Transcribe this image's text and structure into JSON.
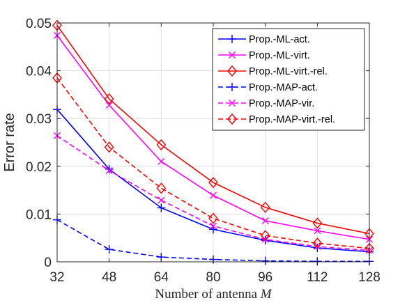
{
  "chart_data": {
    "type": "line",
    "xlabel": "Number of antenna",
    "xlabel_var": "M",
    "ylabel": "Error rate",
    "x": [
      32,
      48,
      64,
      80,
      96,
      112,
      128
    ],
    "xlim": [
      32,
      128
    ],
    "ylim": [
      0,
      0.05
    ],
    "x_ticks": [
      "32",
      "48",
      "64",
      "80",
      "96",
      "112",
      "128"
    ],
    "y_ticks": [
      {
        "value": 0,
        "label": "0"
      },
      {
        "value": 0.01,
        "label": "0.01"
      },
      {
        "value": 0.02,
        "label": "0.02"
      },
      {
        "value": 0.03,
        "label": "0.03"
      },
      {
        "value": 0.04,
        "label": "0.04"
      },
      {
        "value": 0.05,
        "label": "0.05"
      }
    ],
    "grid": true,
    "legend_position": "top-right",
    "series": [
      {
        "name": "Prop.-ML-act.",
        "color": "#0000ff",
        "style": "solid",
        "marker": "plus",
        "values": [
          0.0319,
          0.0194,
          0.0113,
          0.0068,
          0.0045,
          0.0029,
          0.0021
        ]
      },
      {
        "name": "Prop.-ML-virt.",
        "color": "#ff00ff",
        "style": "solid",
        "marker": "x",
        "values": [
          0.0474,
          0.0328,
          0.021,
          0.0139,
          0.0086,
          0.0065,
          0.0047
        ]
      },
      {
        "name": "Prop.-ML-virt.-rel.",
        "color": "#ff0000",
        "style": "solid",
        "marker": "diamond",
        "values": [
          0.0495,
          0.0341,
          0.0245,
          0.0166,
          0.0114,
          0.0081,
          0.0059
        ]
      },
      {
        "name": "Prop.-MAP-act.",
        "color": "#0000ff",
        "style": "dashed",
        "marker": "plus",
        "values": [
          0.0088,
          0.0026,
          0.001,
          0.0005,
          0.0002,
          0.0001,
          0.0001
        ]
      },
      {
        "name": "Prop.-MAP-vir.",
        "color": "#ff00ff",
        "style": "dashed",
        "marker": "x",
        "values": [
          0.0264,
          0.0191,
          0.0129,
          0.0075,
          0.0047,
          0.0032,
          0.0024
        ]
      },
      {
        "name": "Prop.-MAP-virt.-rel.",
        "color": "#ff0000",
        "style": "dashed",
        "marker": "diamond",
        "values": [
          0.0385,
          0.024,
          0.0154,
          0.0091,
          0.0055,
          0.0039,
          0.0028
        ]
      }
    ]
  }
}
